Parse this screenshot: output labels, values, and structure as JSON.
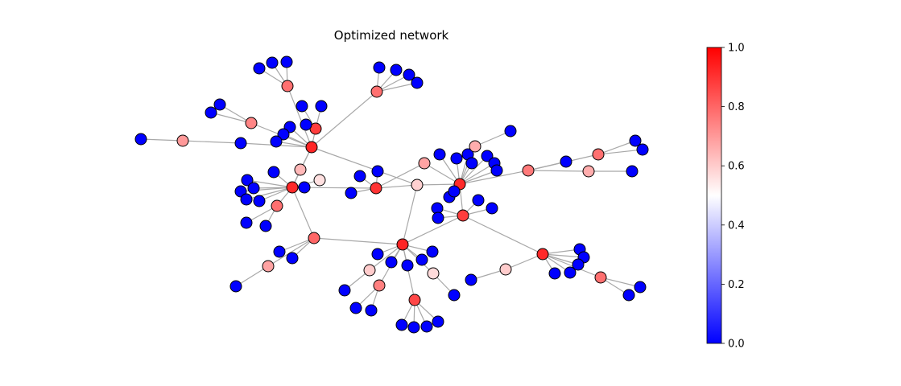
{
  "title": "Optimized network",
  "colorbar": {
    "colormap": "bwr",
    "colors": {
      "low": "#0000ff",
      "mid": "#ffffff",
      "high": "#ff0000"
    },
    "range": [
      0.0,
      1.0
    ],
    "ticks": [
      {
        "value": 0.0,
        "label": "0.0"
      },
      {
        "value": 0.2,
        "label": "0.2"
      },
      {
        "value": 0.4,
        "label": "0.4"
      },
      {
        "value": 0.6,
        "label": "0.6"
      },
      {
        "value": 0.8,
        "label": "0.8"
      },
      {
        "value": 1.0,
        "label": "1.0"
      }
    ]
  },
  "network": {
    "node_count": 105,
    "edge_count": 105
  }
}
